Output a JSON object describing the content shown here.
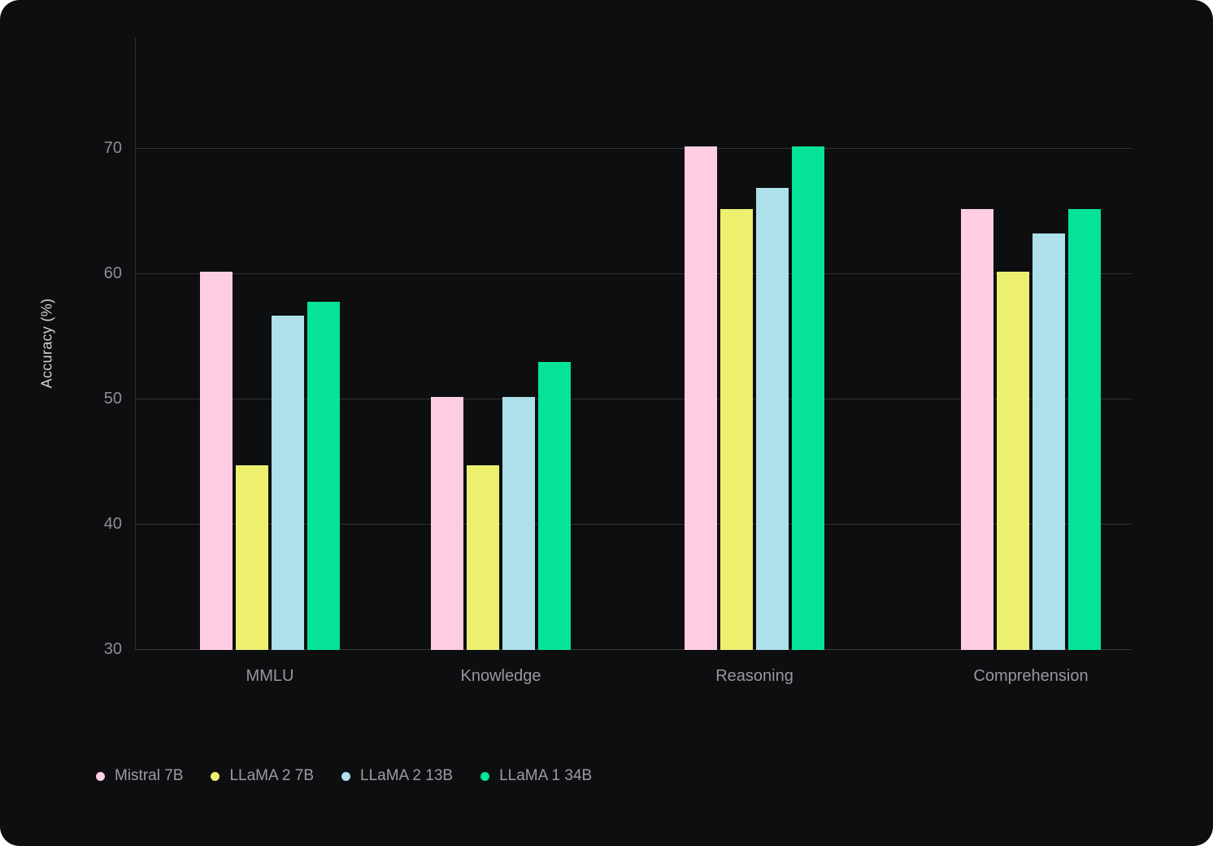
{
  "chart_data": {
    "type": "bar",
    "title": "",
    "ylabel": "Accuracy (%)",
    "categories": [
      "MMLU",
      "Knowledge",
      "Reasoning",
      "Comprehension"
    ],
    "series": [
      {
        "name": "Mistral 7B",
        "color": "#ffcde3",
        "values": [
          60.1,
          50.1,
          70.1,
          65.1
        ]
      },
      {
        "name": "LLaMA 2 7B",
        "color": "#edf06e",
        "values": [
          44.7,
          44.7,
          65.1,
          60.1
        ]
      },
      {
        "name": "LLaMA 2 13B",
        "color": "#ade0ea",
        "values": [
          56.6,
          50.1,
          66.8,
          63.2
        ]
      },
      {
        "name": "LLaMA 1 34B",
        "color": "#05e39b",
        "values": [
          57.7,
          52.9,
          70.1,
          65.1
        ]
      }
    ],
    "yticks": [
      30,
      40,
      50,
      60,
      70
    ],
    "ylim": [
      30,
      78.8
    ],
    "grid": true,
    "legend_position": "bottom",
    "background_color": "#0d0e0f"
  }
}
